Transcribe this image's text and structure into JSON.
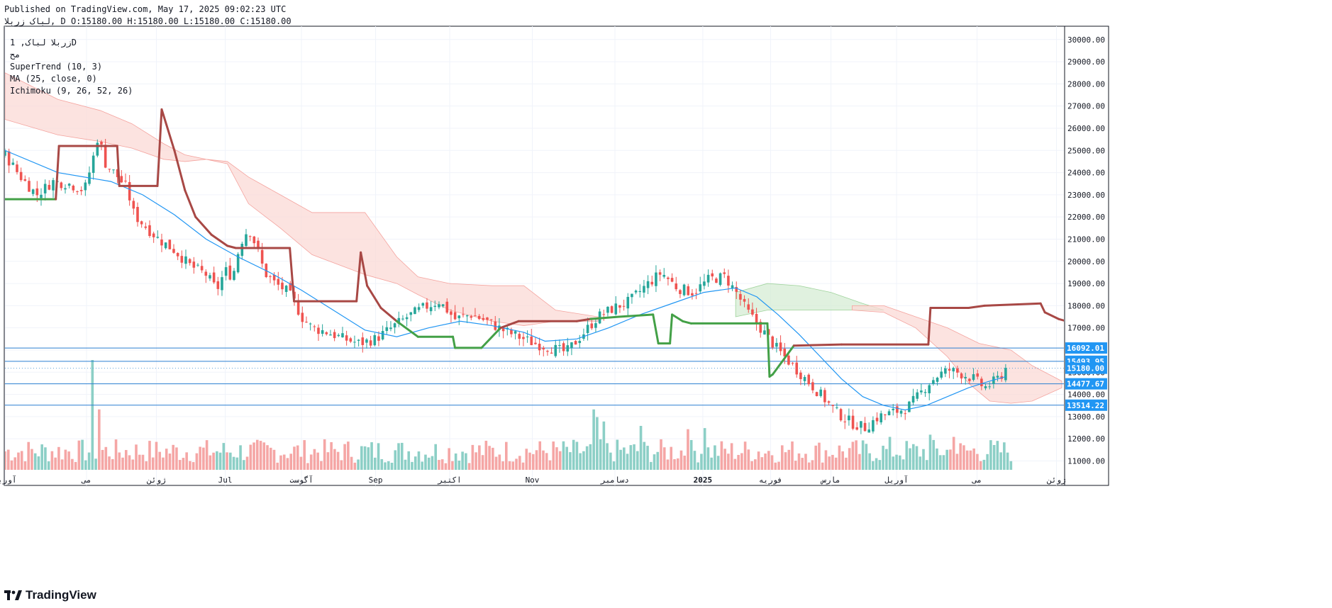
{
  "header": {
    "published": "Published on TradingView.com, May 17, 2025 09:02:23 UTC",
    "symbol": "لباک زربلا",
    "interval": "D",
    "ohlc": "O:15180.00 H:15180.00 L:15180.00 C:15180.00"
  },
  "legend": {
    "title": "زربلا لباک, 1D",
    "sub": "مح",
    "indicators": [
      "SuperTrend (10, 3)",
      "MA (25, close, 0)",
      "Ichimoku (9, 26, 52, 26)"
    ]
  },
  "brand": {
    "name": "TradingView"
  },
  "colors": {
    "up": "#26a69a",
    "down": "#ef5350",
    "volume_up": "#8ccfc6",
    "volume_down": "#f5a6a5",
    "supertrend_up": "#43a047",
    "supertrend_down": "#a84845",
    "ma": "#2196f3",
    "cloud_bear": "#fbd9d6",
    "cloud_bull": "#d5ecd4",
    "hline": "#2a7fd1",
    "label_bg": "#2196f3"
  },
  "chart_data": {
    "type": "candlestick",
    "title": "",
    "xlabel": "",
    "ylabel": "",
    "ylim": [
      10600,
      30600
    ],
    "grid": true,
    "y_ticks": [
      11000,
      12000,
      13000,
      14000,
      15000,
      16000,
      17000,
      18000,
      19000,
      20000,
      21000,
      22000,
      23000,
      24000,
      25000,
      26000,
      27000,
      28000,
      29000,
      30000
    ],
    "x_labels": [
      {
        "label": "آوریل",
        "t": 0
      },
      {
        "label": "می",
        "t": 0.077
      },
      {
        "label": "ژوئن",
        "t": 0.143
      },
      {
        "label": "Jul",
        "t": 0.208
      },
      {
        "label": "آگوست",
        "t": 0.28
      },
      {
        "label": "Sep",
        "t": 0.35
      },
      {
        "label": "اکتبر",
        "t": 0.42
      },
      {
        "label": "Nov",
        "t": 0.498
      },
      {
        "label": "دسامبر",
        "t": 0.576
      },
      {
        "label": "2025",
        "t": 0.659,
        "bold": true
      },
      {
        "label": "فوریه",
        "t": 0.723
      },
      {
        "label": "مارس",
        "t": 0.78
      },
      {
        "label": "آوریل",
        "t": 0.842
      },
      {
        "label": "می",
        "t": 0.918
      },
      {
        "label": "ژوئن",
        "t": 0.993
      }
    ],
    "horizontal_lines": [
      {
        "price": 16092.01,
        "label": "16092.01"
      },
      {
        "price": 15493.95,
        "label": "15493.95"
      },
      {
        "price": 14477.67,
        "label": "14477.67"
      },
      {
        "price": 13514.22,
        "label": "13514.22"
      }
    ],
    "last_price": {
      "price": 15180.0,
      "label": "15180.00"
    },
    "close_path": [
      [
        0.0,
        24800
      ],
      [
        0.015,
        23800
      ],
      [
        0.03,
        23000
      ],
      [
        0.045,
        23600
      ],
      [
        0.06,
        23500
      ],
      [
        0.075,
        23200
      ],
      [
        0.083,
        24600
      ],
      [
        0.088,
        25700
      ],
      [
        0.095,
        24400
      ],
      [
        0.105,
        23900
      ],
      [
        0.115,
        23300
      ],
      [
        0.122,
        22100
      ],
      [
        0.13,
        21700
      ],
      [
        0.145,
        21000
      ],
      [
        0.16,
        20500
      ],
      [
        0.175,
        19800
      ],
      [
        0.19,
        19400
      ],
      [
        0.2,
        18700
      ],
      [
        0.208,
        19600
      ],
      [
        0.215,
        19300
      ],
      [
        0.222,
        20800
      ],
      [
        0.23,
        21500
      ],
      [
        0.238,
        20600
      ],
      [
        0.245,
        19500
      ],
      [
        0.255,
        19000
      ],
      [
        0.265,
        18700
      ],
      [
        0.272,
        18300
      ],
      [
        0.28,
        17500
      ],
      [
        0.29,
        17000
      ],
      [
        0.305,
        16800
      ],
      [
        0.32,
        16500
      ],
      [
        0.335,
        16300
      ],
      [
        0.35,
        16500
      ],
      [
        0.365,
        17000
      ],
      [
        0.38,
        17500
      ],
      [
        0.395,
        17900
      ],
      [
        0.41,
        18200
      ],
      [
        0.425,
        17400
      ],
      [
        0.44,
        17600
      ],
      [
        0.455,
        17300
      ],
      [
        0.47,
        16900
      ],
      [
        0.485,
        16600
      ],
      [
        0.5,
        16300
      ],
      [
        0.515,
        16100
      ],
      [
        0.53,
        15900
      ],
      [
        0.545,
        16700
      ],
      [
        0.56,
        17500
      ],
      [
        0.575,
        17900
      ],
      [
        0.59,
        18200
      ],
      [
        0.605,
        18900
      ],
      [
        0.62,
        19500
      ],
      [
        0.635,
        18800
      ],
      [
        0.65,
        18600
      ],
      [
        0.665,
        19200
      ],
      [
        0.68,
        19300
      ],
      [
        0.692,
        18500
      ],
      [
        0.7,
        17800
      ],
      [
        0.71,
        17200
      ],
      [
        0.72,
        16600
      ],
      [
        0.73,
        16000
      ],
      [
        0.74,
        15500
      ],
      [
        0.75,
        15000
      ],
      [
        0.76,
        14500
      ],
      [
        0.77,
        14000
      ],
      [
        0.785,
        13200
      ],
      [
        0.8,
        12700
      ],
      [
        0.812,
        12500
      ],
      [
        0.825,
        13000
      ],
      [
        0.84,
        13200
      ],
      [
        0.852,
        13400
      ],
      [
        0.862,
        13900
      ],
      [
        0.872,
        14500
      ],
      [
        0.882,
        14900
      ],
      [
        0.892,
        15100
      ],
      [
        0.905,
        14900
      ],
      [
        0.915,
        14700
      ],
      [
        0.925,
        14300
      ],
      [
        0.932,
        14500
      ],
      [
        0.94,
        14800
      ],
      [
        0.945,
        15180
      ]
    ],
    "supertrend": [
      [
        0.0,
        22800
      ],
      [
        0.048,
        22800
      ],
      [
        0.051,
        25200
      ],
      [
        0.106,
        25200
      ],
      [
        0.108,
        23400
      ],
      [
        0.144,
        23400
      ],
      [
        0.148,
        26850
      ],
      [
        0.16,
        25000
      ],
      [
        0.17,
        23200
      ],
      [
        0.18,
        22000
      ],
      [
        0.195,
        21200
      ],
      [
        0.21,
        20700
      ],
      [
        0.218,
        20600
      ],
      [
        0.269,
        20600
      ],
      [
        0.273,
        18200
      ],
      [
        0.332,
        18200
      ],
      [
        0.336,
        20400
      ],
      [
        0.342,
        18900
      ],
      [
        0.355,
        17900
      ],
      [
        0.37,
        17300
      ],
      [
        0.39,
        16600
      ],
      [
        0.423,
        16600
      ],
      [
        0.425,
        16100
      ],
      [
        0.45,
        16100
      ],
      [
        0.468,
        17000
      ],
      [
        0.485,
        17300
      ],
      [
        0.54,
        17300
      ],
      [
        0.553,
        17400
      ],
      [
        0.58,
        17500
      ],
      [
        0.612,
        17600
      ],
      [
        0.617,
        16300
      ],
      [
        0.628,
        16300
      ],
      [
        0.63,
        17600
      ],
      [
        0.64,
        17300
      ],
      [
        0.648,
        17200
      ],
      [
        0.72,
        17200
      ],
      [
        0.722,
        14800
      ],
      [
        0.725,
        14900
      ],
      [
        0.745,
        16200
      ],
      [
        0.79,
        16250
      ],
      [
        0.872,
        16250
      ],
      [
        0.874,
        17900
      ],
      [
        0.91,
        17900
      ],
      [
        0.925,
        18000
      ],
      [
        0.978,
        18100
      ],
      [
        0.982,
        17700
      ],
      [
        0.995,
        17400
      ],
      [
        1.01,
        17200
      ]
    ],
    "moving_average": [
      [
        0.0,
        25000
      ],
      [
        0.05,
        24000
      ],
      [
        0.1,
        23600
      ],
      [
        0.13,
        23000
      ],
      [
        0.16,
        22100
      ],
      [
        0.19,
        21000
      ],
      [
        0.22,
        20200
      ],
      [
        0.25,
        19500
      ],
      [
        0.28,
        18700
      ],
      [
        0.31,
        17800
      ],
      [
        0.34,
        16900
      ],
      [
        0.37,
        16600
      ],
      [
        0.4,
        17000
      ],
      [
        0.43,
        17300
      ],
      [
        0.46,
        17100
      ],
      [
        0.49,
        16800
      ],
      [
        0.51,
        16400
      ],
      [
        0.54,
        16500
      ],
      [
        0.57,
        17000
      ],
      [
        0.6,
        17600
      ],
      [
        0.63,
        18100
      ],
      [
        0.66,
        18600
      ],
      [
        0.69,
        18800
      ],
      [
        0.71,
        18400
      ],
      [
        0.73,
        17600
      ],
      [
        0.75,
        16700
      ],
      [
        0.77,
        15700
      ],
      [
        0.79,
        14700
      ],
      [
        0.81,
        13900
      ],
      [
        0.83,
        13500
      ],
      [
        0.85,
        13300
      ],
      [
        0.87,
        13500
      ],
      [
        0.89,
        13900
      ],
      [
        0.91,
        14300
      ],
      [
        0.93,
        14600
      ],
      [
        0.945,
        14800
      ]
    ],
    "cloud_bear_top": [
      [
        0.0,
        28500
      ],
      [
        0.05,
        27300
      ],
      [
        0.09,
        26800
      ],
      [
        0.12,
        26200
      ],
      [
        0.15,
        25300
      ],
      [
        0.17,
        24800
      ],
      [
        0.19,
        24600
      ],
      [
        0.21,
        24500
      ],
      [
        0.23,
        23800
      ],
      [
        0.26,
        23000
      ],
      [
        0.29,
        22200
      ],
      [
        0.34,
        22200
      ],
      [
        0.37,
        20200
      ],
      [
        0.39,
        19300
      ],
      [
        0.42,
        19000
      ],
      [
        0.46,
        18900
      ],
      [
        0.49,
        18900
      ],
      [
        0.52,
        17800
      ],
      [
        0.56,
        17500
      ]
    ],
    "cloud_bear_bottom": [
      [
        0.0,
        26400
      ],
      [
        0.05,
        25700
      ],
      [
        0.09,
        25400
      ],
      [
        0.12,
        25100
      ],
      [
        0.15,
        24600
      ],
      [
        0.17,
        24500
      ],
      [
        0.19,
        24600
      ],
      [
        0.21,
        24400
      ],
      [
        0.23,
        22600
      ],
      [
        0.26,
        21500
      ],
      [
        0.29,
        20300
      ],
      [
        0.34,
        19400
      ],
      [
        0.37,
        19000
      ],
      [
        0.39,
        18500
      ],
      [
        0.42,
        17800
      ],
      [
        0.46,
        17300
      ],
      [
        0.49,
        17100
      ],
      [
        0.52,
        17300
      ],
      [
        0.56,
        17300
      ]
    ],
    "cloud_bull_top": [
      [
        0.69,
        18600
      ],
      [
        0.72,
        19000
      ],
      [
        0.75,
        18900
      ],
      [
        0.78,
        18600
      ],
      [
        0.81,
        18100
      ],
      [
        0.83,
        17800
      ]
    ],
    "cloud_bull_bottom": [
      [
        0.69,
        17500
      ],
      [
        0.72,
        17800
      ],
      [
        0.75,
        17800
      ],
      [
        0.78,
        17800
      ],
      [
        0.81,
        17800
      ],
      [
        0.83,
        17800
      ]
    ],
    "cloud_bear2_top": [
      [
        0.8,
        18000
      ],
      [
        0.83,
        18000
      ],
      [
        0.86,
        17500
      ],
      [
        0.89,
        17000
      ],
      [
        0.92,
        16300
      ],
      [
        0.95,
        16000
      ],
      [
        0.97,
        15300
      ],
      [
        0.998,
        14600
      ]
    ],
    "cloud_bear2_bottom": [
      [
        0.8,
        17800
      ],
      [
        0.83,
        17700
      ],
      [
        0.86,
        17000
      ],
      [
        0.89,
        15700
      ],
      [
        0.91,
        14500
      ],
      [
        0.93,
        13700
      ],
      [
        0.95,
        13600
      ],
      [
        0.97,
        13700
      ],
      [
        0.998,
        14300
      ]
    ],
    "volume_spikes": [
      {
        "t": 0.082,
        "v": 1.0
      },
      {
        "t": 0.088,
        "v": 0.55
      },
      {
        "t": 0.555,
        "v": 0.55
      },
      {
        "t": 0.56,
        "v": 0.48
      },
      {
        "t": 0.565,
        "v": 0.44
      },
      {
        "t": 0.6,
        "v": 0.4
      },
      {
        "t": 0.645,
        "v": 0.37
      },
      {
        "t": 0.66,
        "v": 0.38
      },
      {
        "t": 0.835,
        "v": 0.3
      },
      {
        "t": 0.875,
        "v": 0.32
      },
      {
        "t": 0.895,
        "v": 0.3
      },
      {
        "t": 0.93,
        "v": 0.27
      }
    ]
  }
}
